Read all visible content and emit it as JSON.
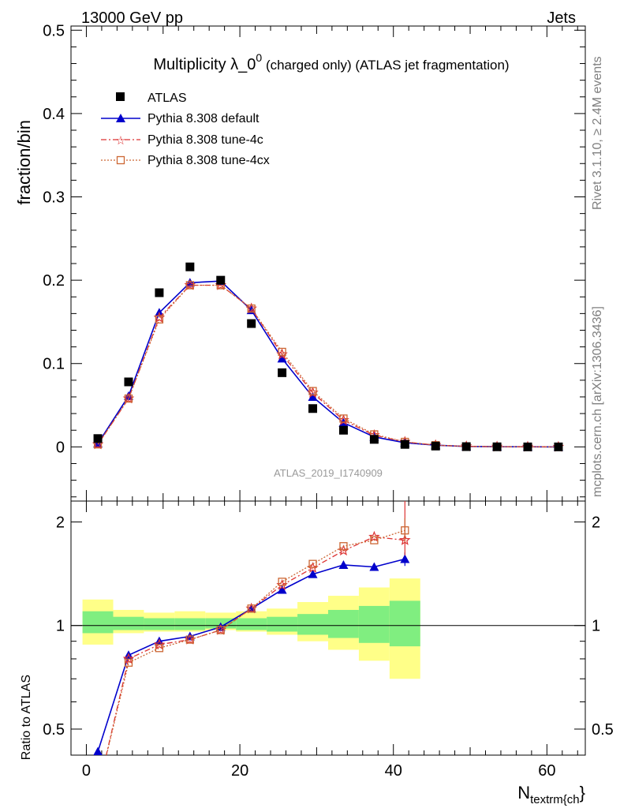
{
  "header": {
    "energy_label": "13000 GeV pp",
    "jets_label": "Jets"
  },
  "side_labels": {
    "rivet": "Rivet 3.1.10, ≥ 2.4M events",
    "mcplots": "mcplots.cern.ch [arXiv:1306.3436]"
  },
  "watermark": "ATLAS_2019_I1740909",
  "chart_data": [
    {
      "type": "scatter",
      "title_main": "Multiplicity λ_0",
      "title_sup": "0",
      "title_rest": " (charged only) (ATLAS jet fragmentation)",
      "ylabel": "fraction/bin",
      "ylim": [
        -0.065,
        0.505
      ],
      "yticks": [
        0,
        0.1,
        0.2,
        0.3,
        0.4,
        0.5
      ],
      "ytick_labels": [
        "0",
        "0.1",
        "0.2",
        "0.3",
        "0.4",
        "0.5"
      ],
      "xlim": [
        -2,
        65
      ],
      "x": [
        1.5,
        5.5,
        9.5,
        13.5,
        17.5,
        21.5,
        25.5,
        29.5,
        33.5,
        37.5,
        41.5,
        45.5,
        49.5,
        53.5,
        57.5,
        61.5
      ],
      "series": [
        {
          "name": "ATLAS",
          "color": "#000000",
          "values": [
            0.01,
            0.078,
            0.185,
            0.216,
            0.2,
            0.148,
            0.089,
            0.046,
            0.02,
            0.009,
            0.003,
            0.001,
            0.0003,
            0.0001,
            0.0,
            0.0
          ]
        },
        {
          "name": "Pythia 8.308 default",
          "color": "#0000cc",
          "values": [
            0.004,
            0.061,
            0.161,
            0.197,
            0.199,
            0.164,
            0.106,
            0.06,
            0.029,
            0.012,
            0.005,
            0.002,
            0.0005,
            0.0002,
            0.0001,
            0.0
          ]
        },
        {
          "name": "Pythia 8.308 tune-4c",
          "color": "#dd3333",
          "values": [
            0.003,
            0.058,
            0.155,
            0.194,
            0.194,
            0.166,
            0.111,
            0.065,
            0.032,
            0.014,
            0.006,
            0.002,
            0.0006,
            0.0002,
            0.0001,
            0.0
          ]
        },
        {
          "name": "Pythia 8.308 tune-4cx",
          "color": "#cc6633",
          "values": [
            0.003,
            0.058,
            0.153,
            0.194,
            0.194,
            0.166,
            0.114,
            0.067,
            0.034,
            0.015,
            0.006,
            0.002,
            0.0006,
            0.0002,
            0.0001,
            0.0
          ]
        }
      ]
    },
    {
      "type": "line",
      "ylabel": "Ratio to ATLAS",
      "xlabel": "N",
      "xlabel_sub": "textrm{ch",
      "xlabel_brace": "}",
      "ylim": [
        0.42,
        2.3
      ],
      "yticks": [
        0.5,
        1,
        2
      ],
      "ytick_labels": [
        "0.5",
        "1",
        "2"
      ],
      "xlim": [
        -2,
        65
      ],
      "xticks": [
        0,
        20,
        40,
        60
      ],
      "xtick_labels": [
        "0",
        "20",
        "40",
        "60"
      ],
      "reference_line": 1,
      "bands": {
        "edges": [
          -0.5,
          3.5,
          7.5,
          11.5,
          15.5,
          19.5,
          23.5,
          27.5,
          31.5,
          35.5,
          39.5,
          43.5
        ],
        "inner_color": "#80ee80",
        "outer_color": "#ffff88",
        "inner": [
          [
            0.95,
            1.1
          ],
          [
            0.97,
            1.06
          ],
          [
            0.97,
            1.05
          ],
          [
            0.97,
            1.05
          ],
          [
            0.98,
            1.05
          ],
          [
            0.97,
            1.05
          ],
          [
            0.96,
            1.06
          ],
          [
            0.94,
            1.08
          ],
          [
            0.92,
            1.11
          ],
          [
            0.89,
            1.14
          ],
          [
            0.87,
            1.18
          ]
        ],
        "outer": [
          [
            0.88,
            1.19
          ],
          [
            0.95,
            1.11
          ],
          [
            0.96,
            1.09
          ],
          [
            0.96,
            1.1
          ],
          [
            0.97,
            1.09
          ],
          [
            0.96,
            1.1
          ],
          [
            0.94,
            1.12
          ],
          [
            0.9,
            1.17
          ],
          [
            0.85,
            1.22
          ],
          [
            0.79,
            1.29
          ],
          [
            0.7,
            1.37
          ]
        ]
      },
      "x": [
        1.5,
        5.5,
        9.5,
        13.5,
        17.5,
        21.5,
        25.5,
        29.5,
        33.5,
        37.5,
        41.5
      ],
      "series": [
        {
          "name": "Pythia 8.308 default",
          "color": "#0000cc",
          "values": [
            0.43,
            0.82,
            0.9,
            0.93,
            0.99,
            1.12,
            1.27,
            1.41,
            1.5,
            1.48,
            1.56
          ],
          "err_last": [
            1.49,
            1.63
          ]
        },
        {
          "name": "Pythia 8.308 tune-4c",
          "color": "#dd3333",
          "values": [
            0.33,
            0.8,
            0.88,
            0.91,
            0.97,
            1.12,
            1.31,
            1.47,
            1.65,
            1.81,
            1.77
          ],
          "err_last": [
            1.6,
            2.3
          ]
        },
        {
          "name": "Pythia 8.308 tune-4cx",
          "color": "#cc6633",
          "values": [
            0.33,
            0.78,
            0.86,
            0.91,
            0.97,
            1.12,
            1.34,
            1.51,
            1.7,
            1.77,
            1.89
          ],
          "err_last": [
            1.75,
            2.05
          ]
        }
      ]
    }
  ]
}
